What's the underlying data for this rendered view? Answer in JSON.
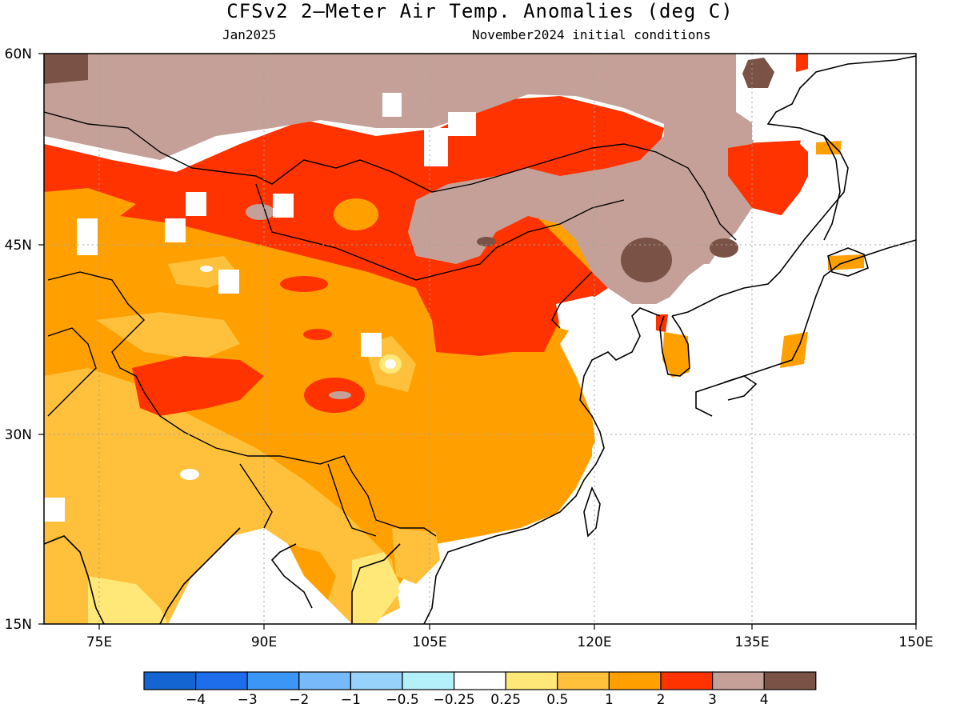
{
  "title": "CFSv2 2–Meter Air Temp. Anomalies (deg C)",
  "month": "Jan2025",
  "initial_conditions": "November2024 initial conditions",
  "lat_labels": [
    "60N",
    "45N",
    "30N",
    "15N"
  ],
  "lon_labels": [
    "75E",
    "90E",
    "105E",
    "120E",
    "135E",
    "150E"
  ],
  "colorbar": {
    "colors": [
      "#1464d2",
      "#1e6eeb",
      "#3c96f5",
      "#78b9fa",
      "#96d2fa",
      "#b4f0fa",
      "#ffffff",
      "#ffe878",
      "#ffc03c",
      "#ffa000",
      "#ff3300",
      "#c4a098",
      "#7a5246"
    ],
    "labels": [
      "−4",
      "−3",
      "−2",
      "−1",
      "−0.5",
      "−0.25",
      "0.25",
      "0.5",
      "1",
      "2",
      "3",
      "4"
    ]
  },
  "legend_classes": {
    "brown_dark": "#7a5246",
    "brown_light": "#c4a098",
    "red": "#ff3300",
    "orange": "#ffa000",
    "light_orange": "#ffc03c",
    "yellow": "#ffe878"
  }
}
